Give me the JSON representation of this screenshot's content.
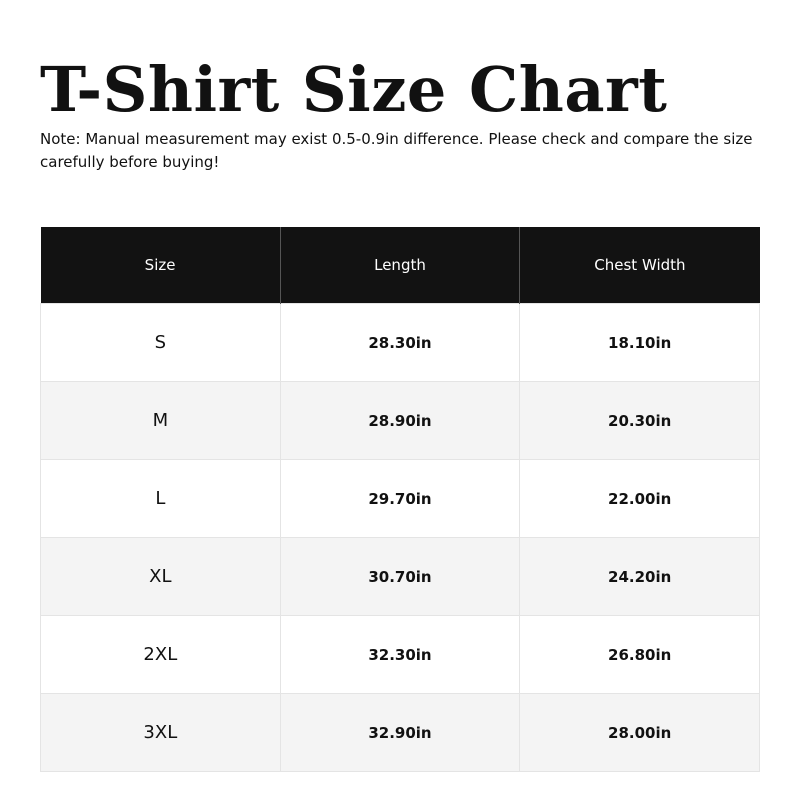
{
  "title": "T-Shirt Size Chart",
  "note": "Note: Manual measurement may exist 0.5-0.9in difference. Please check and compare the size carefully before buying!",
  "table": {
    "headers": [
      "Size",
      "Length",
      "Chest Width"
    ],
    "rows": [
      [
        "S",
        "28.30in",
        "18.10in"
      ],
      [
        "M",
        "28.90in",
        "20.30in"
      ],
      [
        "L",
        "29.70in",
        "22.00in"
      ],
      [
        "XL",
        "30.70in",
        "24.20in"
      ],
      [
        "2XL",
        "32.30in",
        "26.80in"
      ],
      [
        "3XL",
        "32.90in",
        "28.00in"
      ]
    ]
  },
  "colors": {
    "header_bg": "#121212",
    "alt_row_bg": "#f4f4f4"
  }
}
